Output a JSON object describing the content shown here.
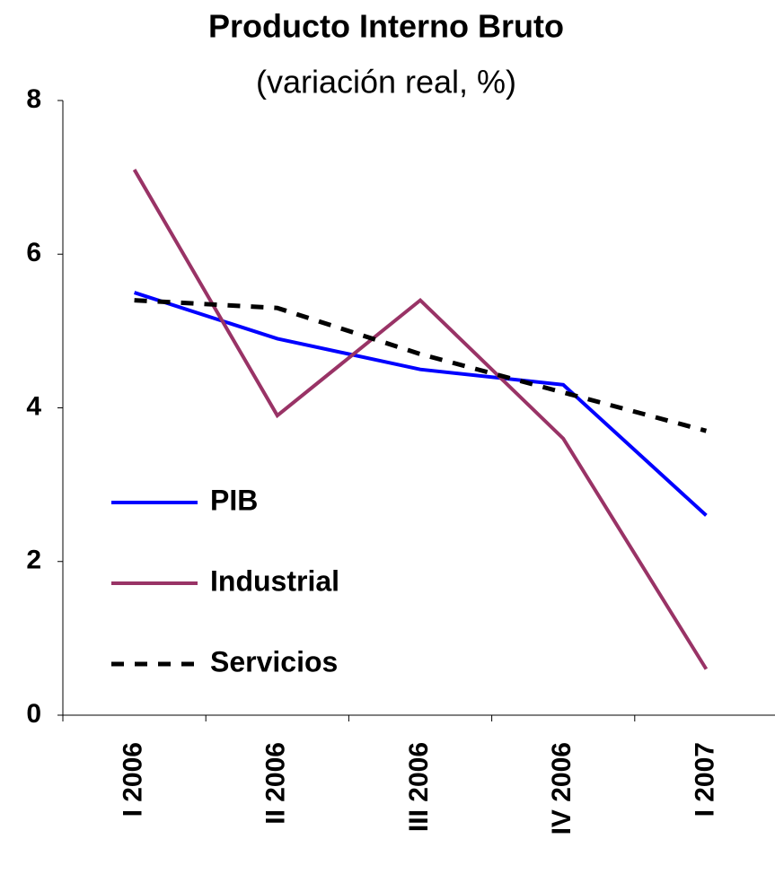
{
  "chart_data": {
    "type": "line",
    "title": "Producto Interno Bruto",
    "subtitle": "(variación real, %)",
    "categories": [
      "I 2006",
      "II 2006",
      "III 2006",
      "IV 2006",
      "I 2007"
    ],
    "series": [
      {
        "name": "PIB",
        "color": "#0000ff",
        "dash": false,
        "values": [
          5.5,
          4.9,
          4.5,
          4.3,
          2.6
        ]
      },
      {
        "name": "Industrial",
        "color": "#993366",
        "dash": false,
        "values": [
          7.1,
          3.9,
          5.4,
          3.6,
          0.6
        ]
      },
      {
        "name": "Servicios",
        "color": "#000000",
        "dash": true,
        "values": [
          5.4,
          5.3,
          4.7,
          4.2,
          3.7
        ]
      }
    ],
    "ylim": [
      0,
      8
    ],
    "yticks": [
      0,
      2,
      4,
      6,
      8
    ],
    "grid": false,
    "legend": "left"
  }
}
